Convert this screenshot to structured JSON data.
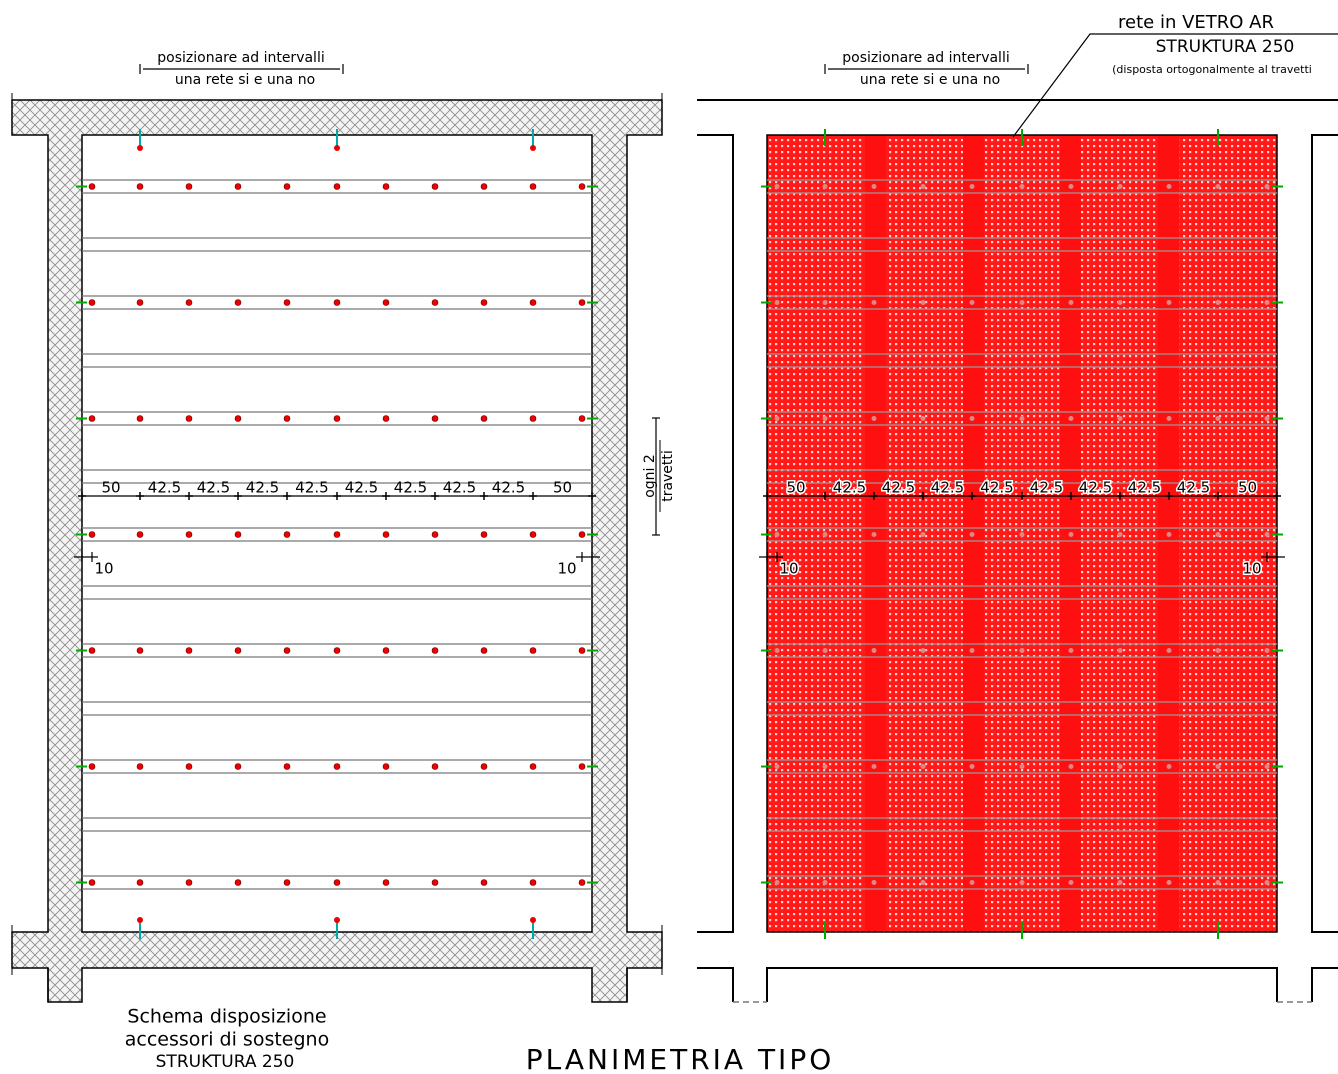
{
  "left_panel": {
    "note": [
      "posizionare ad intervalli",
      "una rete si e una no"
    ],
    "dimensions": [
      50,
      42.5,
      42.5,
      42.5,
      42.5,
      42.5,
      42.5,
      42.5,
      42.5,
      50
    ],
    "edge_offsets": [
      10,
      10
    ],
    "side_note": [
      "ogni 2",
      "travetti"
    ],
    "caption": [
      "Schema disposizione",
      "accessori di sostegno",
      "STRUKTURA 250"
    ]
  },
  "right_panel": {
    "note": [
      "posizionare ad intervalli",
      "una rete si e una no"
    ],
    "callout": [
      "rete in VETRO AR",
      "STRUKTURA 250",
      "(disposta ortogonalmente al travetti"
    ],
    "dimensions": [
      50,
      42.5,
      42.5,
      42.5,
      42.5,
      42.5,
      42.5,
      42.5,
      42.5,
      50
    ],
    "edge_offsets": [
      10,
      10
    ]
  },
  "title": "PLANIMETRIA TIPO"
}
